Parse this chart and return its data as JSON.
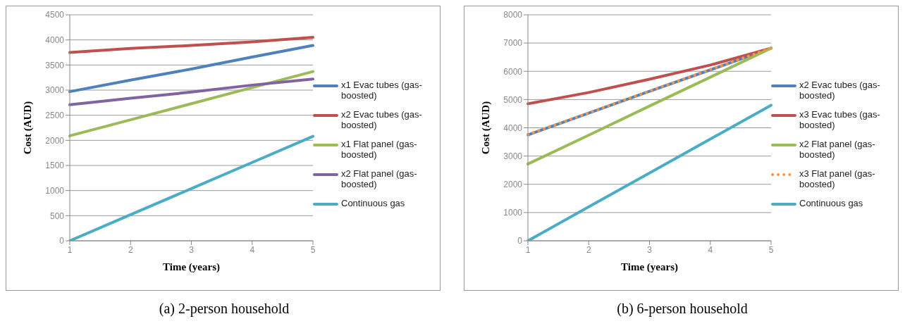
{
  "chart_data": [
    {
      "type": "line",
      "xlabel": "Time (years)",
      "ylabel": "Cost (AUD)",
      "categories": [
        "1",
        "2",
        "3",
        "4",
        "5"
      ],
      "ylim": [
        0,
        4500
      ],
      "yticks": [
        0,
        500,
        1000,
        1500,
        2000,
        2500,
        3000,
        3500,
        4000,
        4500
      ],
      "grid": "y",
      "legend": "right",
      "marker": "none",
      "annotations": [
        "(a) 2-person household"
      ],
      "series": [
        {
          "name": "x1 Evac tubes (gas-boosted)",
          "color": "#4f81bd",
          "values": [
            2970,
            3200,
            3420,
            3660,
            3890
          ]
        },
        {
          "name": "x2 Evac tubes (gas-boosted)",
          "color": "#c0504d",
          "values": [
            3750,
            3830,
            3890,
            3960,
            4050
          ]
        },
        {
          "name": "x1 Flat panel (gas-boosted)",
          "color": "#9bbb59",
          "values": [
            2090,
            2410,
            2730,
            3050,
            3370
          ]
        },
        {
          "name": "x2 Flat panel (gas-boosted)",
          "color": "#8064a2",
          "values": [
            2710,
            2840,
            2960,
            3100,
            3220
          ]
        },
        {
          "name": "Continuous gas",
          "color": "#4bacc6",
          "values": [
            0,
            520,
            1040,
            1560,
            2080
          ]
        }
      ]
    },
    {
      "type": "line",
      "xlabel": "Time (years)",
      "ylabel": "Cost (AUD)",
      "categories": [
        "1",
        "2",
        "3",
        "4",
        "5"
      ],
      "ylim": [
        0,
        8000
      ],
      "yticks": [
        0,
        1000,
        2000,
        3000,
        4000,
        5000,
        6000,
        7000,
        8000
      ],
      "grid": "y",
      "legend": "right",
      "marker": "none",
      "annotations": [
        "(b) 6-person household"
      ],
      "series": [
        {
          "name": "x2 Evac tubes (gas-boosted)",
          "color": "#4f81bd",
          "values": [
            3750,
            4520,
            5290,
            6050,
            6820
          ]
        },
        {
          "name": "x3 Evac tubes (gas-boosted)",
          "color": "#c0504d",
          "values": [
            4850,
            5250,
            5720,
            6220,
            6820
          ]
        },
        {
          "name": "x2 Flat panel (gas-boosted)",
          "color": "#9bbb59",
          "values": [
            2720,
            3740,
            4770,
            5790,
            6820
          ]
        },
        {
          "name": "x3 Flat panel (gas-boosted)",
          "color": "#f79646",
          "line_style": "dotted",
          "values": [
            3760,
            4530,
            5300,
            6060,
            6820
          ]
        },
        {
          "name": "Continuous gas",
          "color": "#4bacc6",
          "values": [
            0,
            1200,
            2400,
            3600,
            4800
          ]
        }
      ]
    }
  ]
}
